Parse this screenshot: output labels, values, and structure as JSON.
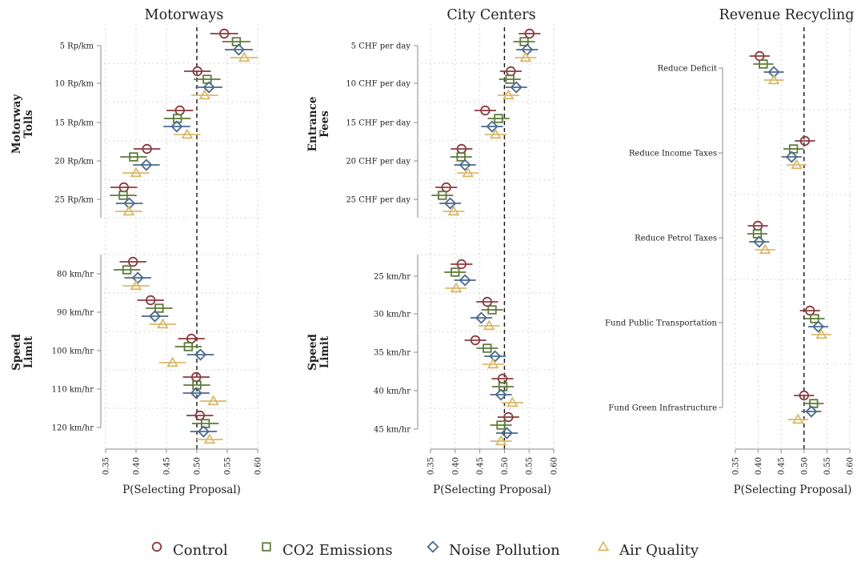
{
  "colors": {
    "Control": "#8b3a3f",
    "CO2 Emissions": "#5e7a3a",
    "Noise Pollution": "#4a6a8c",
    "Air Quality": "#d9b96b"
  },
  "legend": [
    {
      "name": "Control",
      "marker": "circle"
    },
    {
      "name": "CO2 Emissions",
      "marker": "square"
    },
    {
      "name": "Noise Pollution",
      "marker": "diamond"
    },
    {
      "name": "Air Quality",
      "marker": "triangle"
    }
  ],
  "chart_data": [
    {
      "type": "scatter",
      "title": "Motorways",
      "xlabel": "P(Selecting Proposal)",
      "xlim": [
        0.35,
        0.6
      ],
      "xticks": [
        "0.35",
        "0.40",
        "0.45",
        "0.50",
        "0.55",
        "0.60"
      ],
      "reference_line": 0.5,
      "groups": [
        {
          "label": "Motorway Tolls",
          "categories": [
            {
              "label": "5 Rp/km",
              "values": [
                0.545,
                0.565,
                0.569,
                0.578
              ],
              "ci": [
                0.023,
                0.023,
                0.023,
                0.023
              ]
            },
            {
              "label": "10 Rp/km",
              "values": [
                0.501,
                0.517,
                0.52,
                0.513
              ],
              "ci": [
                0.022,
                0.022,
                0.022,
                0.022
              ]
            },
            {
              "label": "15 Rp/km",
              "values": [
                0.472,
                0.468,
                0.467,
                0.484
              ],
              "ci": [
                0.022,
                0.022,
                0.022,
                0.022
              ]
            },
            {
              "label": "20 Rp/km",
              "values": [
                0.418,
                0.396,
                0.417,
                0.4
              ],
              "ci": [
                0.022,
                0.022,
                0.022,
                0.022
              ]
            },
            {
              "label": "25 Rp/km",
              "values": [
                0.38,
                0.379,
                0.389,
                0.388
              ],
              "ci": [
                0.022,
                0.022,
                0.022,
                0.022
              ]
            }
          ]
        },
        {
          "label": "Speed Limit",
          "categories": [
            {
              "label": "80 km/hr",
              "values": [
                0.395,
                0.385,
                0.403,
                0.4
              ],
              "ci": [
                0.022,
                0.022,
                0.022,
                0.022
              ]
            },
            {
              "label": "90 km/hr",
              "values": [
                0.424,
                0.438,
                0.431,
                0.444
              ],
              "ci": [
                0.022,
                0.022,
                0.022,
                0.022
              ]
            },
            {
              "label": "100 km/hr",
              "values": [
                0.491,
                0.486,
                0.506,
                0.46
              ],
              "ci": [
                0.022,
                0.022,
                0.022,
                0.022
              ]
            },
            {
              "label": "110 km/hr",
              "values": [
                0.499,
                0.5,
                0.499,
                0.527
              ],
              "ci": [
                0.022,
                0.022,
                0.022,
                0.022
              ]
            },
            {
              "label": "120 km/hr",
              "values": [
                0.505,
                0.514,
                0.511,
                0.521
              ],
              "ci": [
                0.022,
                0.022,
                0.022,
                0.022
              ]
            }
          ]
        }
      ]
    },
    {
      "type": "scatter",
      "title": "City Centers",
      "xlabel": "P(Selecting Proposal)",
      "xlim": [
        0.35,
        0.6
      ],
      "xticks": [
        "0.35",
        "0.40",
        "0.45",
        "0.50",
        "0.55",
        "0.60"
      ],
      "reference_line": 0.5,
      "groups": [
        {
          "label": "Entrance Fees",
          "categories": [
            {
              "label": "5 CHF per day",
              "values": [
                0.551,
                0.54,
                0.546,
                0.543
              ],
              "ci": [
                0.022,
                0.022,
                0.022,
                0.022
              ]
            },
            {
              "label": "10 CHF per day",
              "values": [
                0.513,
                0.511,
                0.524,
                0.508
              ],
              "ci": [
                0.022,
                0.022,
                0.022,
                0.022
              ]
            },
            {
              "label": "15 CHF per day",
              "values": [
                0.461,
                0.488,
                0.475,
                0.482
              ],
              "ci": [
                0.022,
                0.022,
                0.022,
                0.022
              ]
            },
            {
              "label": "20 CHF per day",
              "values": [
                0.413,
                0.412,
                0.42,
                0.426
              ],
              "ci": [
                0.022,
                0.022,
                0.022,
                0.022
              ]
            },
            {
              "label": "25 CHF per day",
              "values": [
                0.382,
                0.374,
                0.39,
                0.397
              ],
              "ci": [
                0.022,
                0.022,
                0.022,
                0.022
              ]
            }
          ]
        },
        {
          "label": "Speed Limit",
          "categories": [
            {
              "label": "25 km/hr",
              "values": [
                0.413,
                0.4,
                0.42,
                0.402
              ],
              "ci": [
                0.022,
                0.022,
                0.022,
                0.022
              ]
            },
            {
              "label": "30 km/hr",
              "values": [
                0.465,
                0.475,
                0.453,
                0.469
              ],
              "ci": [
                0.022,
                0.022,
                0.022,
                0.022
              ]
            },
            {
              "label": "35 km/hr",
              "values": [
                0.441,
                0.465,
                0.481,
                0.477
              ],
              "ci": [
                0.022,
                0.022,
                0.022,
                0.022
              ]
            },
            {
              "label": "40 km/hr",
              "values": [
                0.496,
                0.497,
                0.493,
                0.516
              ],
              "ci": [
                0.022,
                0.022,
                0.022,
                0.022
              ]
            },
            {
              "label": "45 km/hr",
              "values": [
                0.508,
                0.493,
                0.505,
                0.493
              ],
              "ci": [
                0.022,
                0.022,
                0.022,
                0.022
              ]
            }
          ]
        }
      ]
    },
    {
      "type": "scatter",
      "title": "Revenue Recycling",
      "xlabel": "P(Selecting Proposal)",
      "xlim": [
        0.35,
        0.6
      ],
      "xticks": [
        "0.35",
        "0.40",
        "0.45",
        "0.50",
        "0.55",
        "0.60"
      ],
      "reference_line": 0.5,
      "groups": [
        {
          "label": "",
          "categories": [
            {
              "label": "Reduce Deficit",
              "values": [
                0.403,
                0.411,
                0.434,
                0.434
              ],
              "ci": [
                0.022,
                0.022,
                0.022,
                0.022
              ]
            },
            {
              "label": "Reduce Income Taxes",
              "values": [
                0.502,
                0.477,
                0.473,
                0.484
              ],
              "ci": [
                0.022,
                0.022,
                0.022,
                0.022
              ]
            },
            {
              "label": "Reduce Petrol Taxes",
              "values": [
                0.399,
                0.398,
                0.402,
                0.415
              ],
              "ci": [
                0.022,
                0.022,
                0.022,
                0.022
              ]
            },
            {
              "label": "Fund Public Transportation",
              "values": [
                0.513,
                0.523,
                0.531,
                0.538
              ],
              "ci": [
                0.022,
                0.022,
                0.022,
                0.022
              ]
            },
            {
              "label": "Fund Green Infrastructure",
              "values": [
                0.5,
                0.521,
                0.516,
                0.487
              ],
              "ci": [
                0.022,
                0.022,
                0.022,
                0.022
              ]
            }
          ]
        }
      ]
    }
  ]
}
